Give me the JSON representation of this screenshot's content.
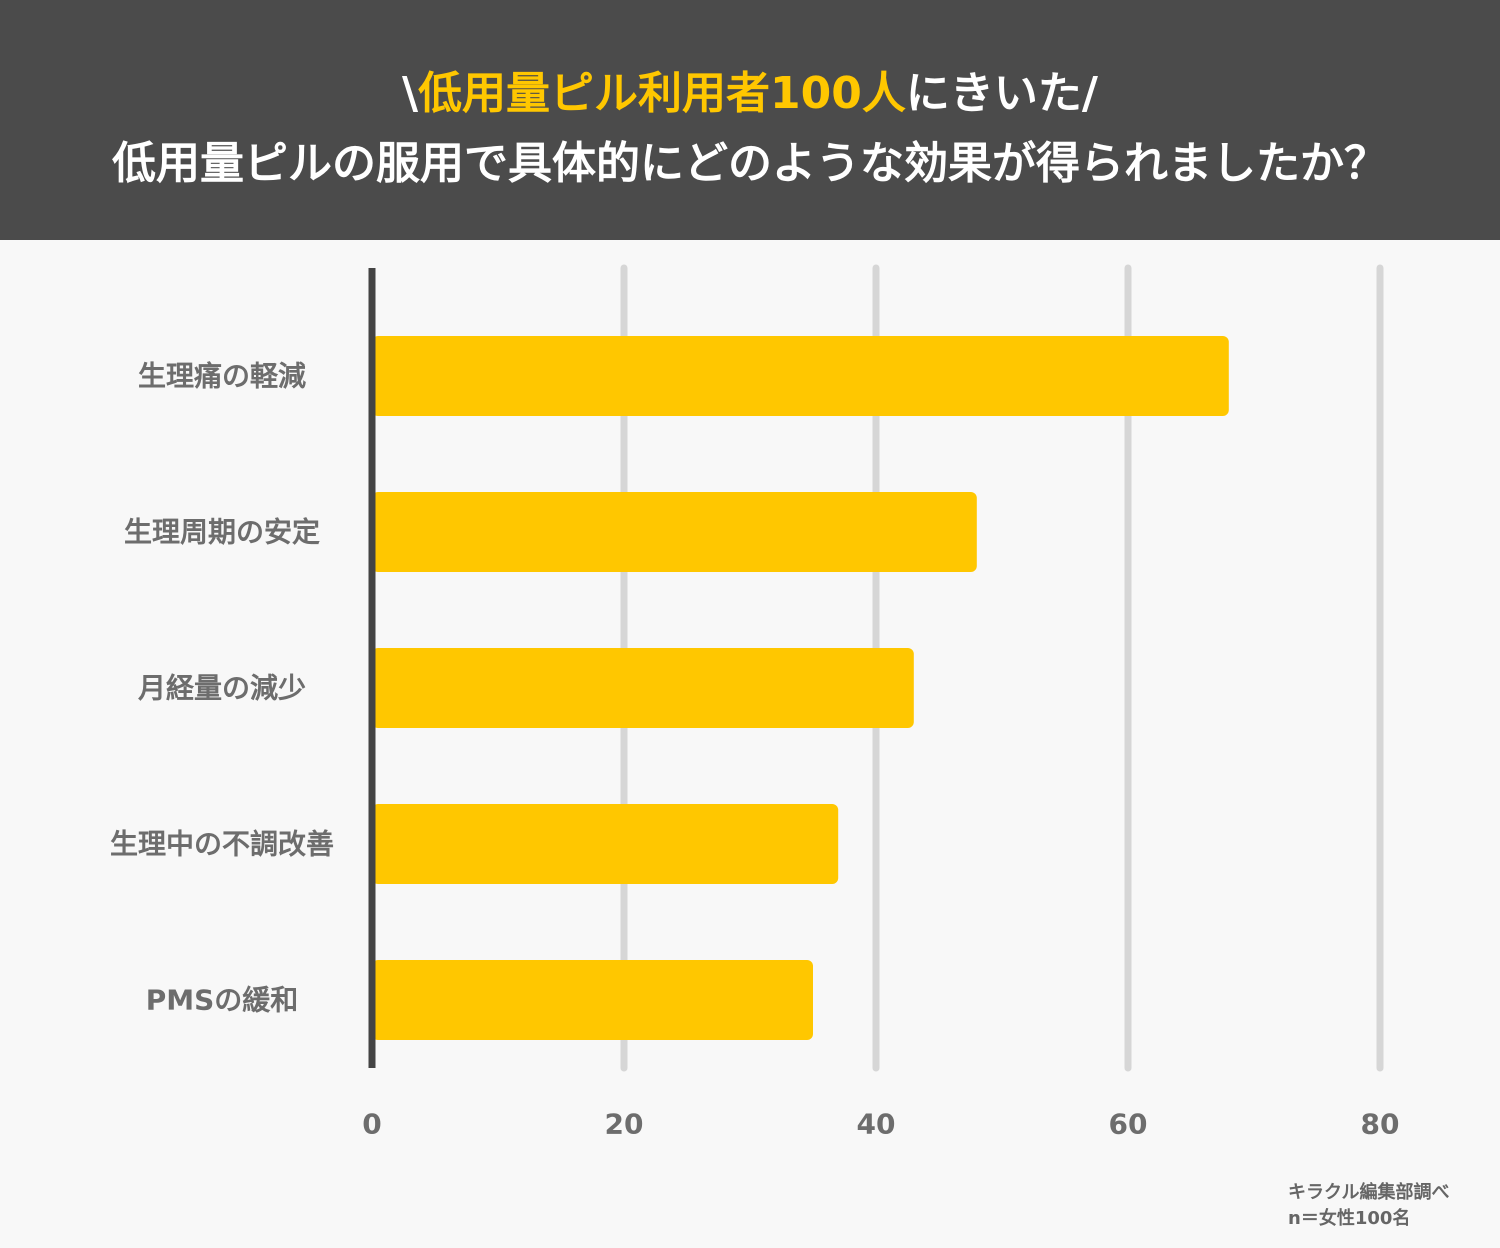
{
  "header": {
    "line1": {
      "open": "\\",
      "highlight": "低用量ピル利用者100人",
      "rest": "にきいた/"
    },
    "line2": "低用量ピルの服用で具体的にどのような効果が得られましたか？"
  },
  "chart_data": {
    "type": "bar",
    "orientation": "horizontal",
    "categories": [
      "生理痛の軽減",
      "生理周期の安定",
      "月経量の減少",
      "生理中の不調改善",
      "PMSの緩和"
    ],
    "values": [
      68,
      48,
      43,
      37,
      35
    ],
    "xlim": [
      0,
      80
    ],
    "xticks": [
      "0",
      "20",
      "40",
      "60",
      "80"
    ],
    "grid": "vertical",
    "bar_color": "#ffc700"
  },
  "source": {
    "line1": "キラクル編集部調べ",
    "line2": "n＝女性100名"
  }
}
